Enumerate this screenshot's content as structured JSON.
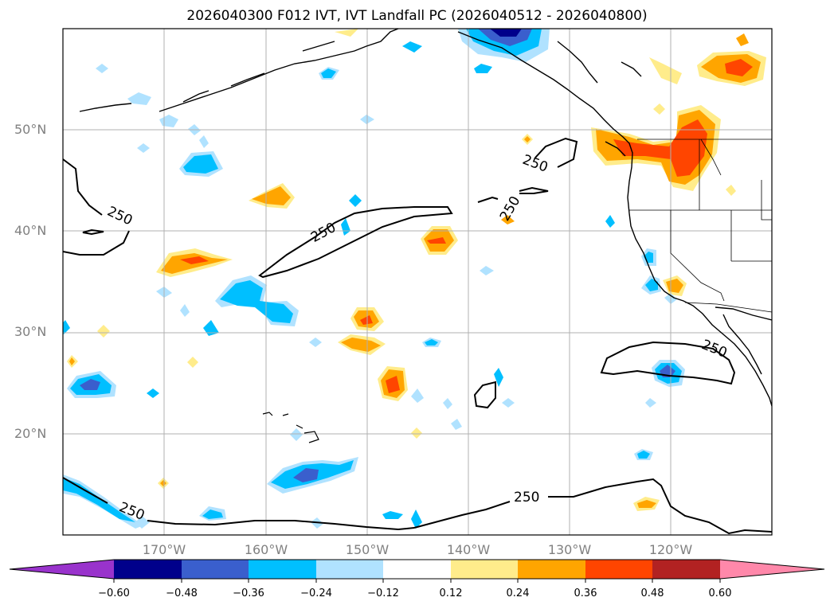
{
  "title": "2026040300 F012 IVT, IVT Landfall PC (2026040512 - 2026040800)",
  "map": {
    "lat_labels": [
      "50°N",
      "40°N",
      "30°N",
      "20°N"
    ],
    "lon_labels": [
      "170°W",
      "160°W",
      "150°W",
      "140°W",
      "130°W",
      "120°W"
    ],
    "lon_range": [
      -180,
      -110
    ],
    "lat_range": [
      10,
      60
    ],
    "contour_level_label": "250"
  },
  "colorbar": {
    "tick_labels": [
      "−0.60",
      "−0.48",
      "−0.36",
      "−0.24",
      "−0.12",
      "0.12",
      "0.24",
      "0.36",
      "0.48",
      "0.60"
    ],
    "colors": [
      "#9933cc",
      "#00008b",
      "#3a5fcd",
      "#00bfff",
      "#b0e2ff",
      "#ffffff",
      "#ffec8b",
      "#ffa500",
      "#ff4500",
      "#b22222",
      "#ff88aa"
    ]
  },
  "colors": {
    "neg_weak": "#b0e2ff",
    "neg_mid": "#00bfff",
    "neg_strong": "#3a5fcd",
    "neg_max": "#00008b",
    "pos_weak": "#ffec8b",
    "pos_mid": "#ffa500",
    "pos_strong": "#ff4500"
  }
}
